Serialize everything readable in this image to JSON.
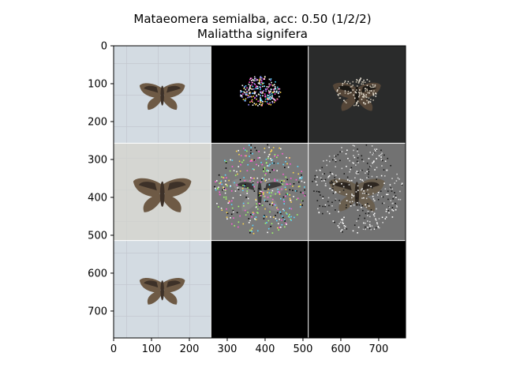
{
  "title": {
    "line1": "Mataeomera semialba, acc: 0.50 (1/2/2)",
    "line2": "Maliattha signifera"
  },
  "axes": {
    "x_ticks": [
      "0",
      "100",
      "200",
      "300",
      "400",
      "500",
      "600",
      "700"
    ],
    "y_ticks": [
      "0",
      "100",
      "200",
      "300",
      "400",
      "500",
      "600",
      "700"
    ]
  },
  "grid": {
    "rows": 3,
    "cols": 3,
    "panels": [
      {
        "name": "original-specimen-1",
        "kind": "photo"
      },
      {
        "name": "saliency-map-sparse-1",
        "kind": "saliency-dark"
      },
      {
        "name": "masked-overlay-1",
        "kind": "overlay-dark"
      },
      {
        "name": "original-specimen-2",
        "kind": "photo"
      },
      {
        "name": "saliency-map-gray-2",
        "kind": "saliency-gray"
      },
      {
        "name": "masked-overlay-2",
        "kind": "overlay-gray"
      },
      {
        "name": "original-specimen-3",
        "kind": "photo"
      },
      {
        "name": "empty-panel-1",
        "kind": "black"
      },
      {
        "name": "empty-panel-2",
        "kind": "black"
      }
    ]
  },
  "colors": {
    "photo_bg": "#d6d8d9",
    "photo_bg_blue": "#d3dbe2",
    "moth_body": "#6e5a45",
    "moth_dark": "#3d3128",
    "saliency_bg": "#000000",
    "overlay_bg": "#2a2b2b",
    "gray_bg": "#7a7a7a",
    "separator": "#ffffff"
  }
}
